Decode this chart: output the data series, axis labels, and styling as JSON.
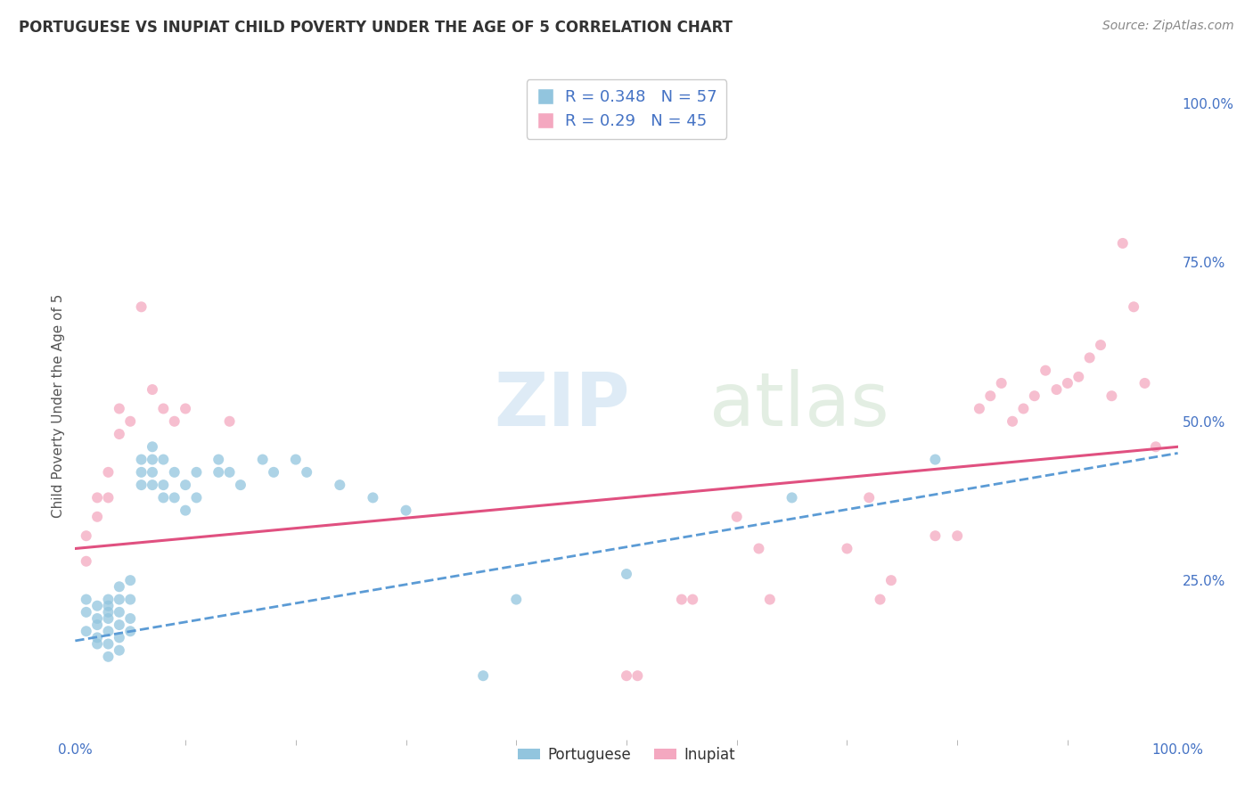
{
  "title": "PORTUGUESE VS INUPIAT CHILD POVERTY UNDER THE AGE OF 5 CORRELATION CHART",
  "source": "Source: ZipAtlas.com",
  "ylabel": "Child Poverty Under the Age of 5",
  "legend_labels": [
    "Portuguese",
    "Inupiat"
  ],
  "R_portuguese": 0.348,
  "N_portuguese": 57,
  "R_inupiat": 0.29,
  "N_inupiat": 45,
  "color_portuguese": "#92c5de",
  "color_inupiat": "#f4a8c0",
  "color_line_portuguese": "#5b9bd5",
  "color_line_inupiat": "#e05080",
  "portuguese_scatter": [
    [
      0.01,
      0.17
    ],
    [
      0.01,
      0.2
    ],
    [
      0.01,
      0.22
    ],
    [
      0.02,
      0.19
    ],
    [
      0.02,
      0.15
    ],
    [
      0.02,
      0.21
    ],
    [
      0.02,
      0.18
    ],
    [
      0.02,
      0.16
    ],
    [
      0.03,
      0.2
    ],
    [
      0.03,
      0.22
    ],
    [
      0.03,
      0.19
    ],
    [
      0.03,
      0.17
    ],
    [
      0.03,
      0.15
    ],
    [
      0.03,
      0.21
    ],
    [
      0.03,
      0.13
    ],
    [
      0.04,
      0.22
    ],
    [
      0.04,
      0.2
    ],
    [
      0.04,
      0.18
    ],
    [
      0.04,
      0.16
    ],
    [
      0.04,
      0.14
    ],
    [
      0.04,
      0.24
    ],
    [
      0.05,
      0.25
    ],
    [
      0.05,
      0.22
    ],
    [
      0.05,
      0.19
    ],
    [
      0.05,
      0.17
    ],
    [
      0.06,
      0.44
    ],
    [
      0.06,
      0.42
    ],
    [
      0.06,
      0.4
    ],
    [
      0.07,
      0.44
    ],
    [
      0.07,
      0.46
    ],
    [
      0.07,
      0.42
    ],
    [
      0.07,
      0.4
    ],
    [
      0.08,
      0.44
    ],
    [
      0.08,
      0.4
    ],
    [
      0.08,
      0.38
    ],
    [
      0.09,
      0.42
    ],
    [
      0.09,
      0.38
    ],
    [
      0.1,
      0.4
    ],
    [
      0.1,
      0.36
    ],
    [
      0.11,
      0.42
    ],
    [
      0.11,
      0.38
    ],
    [
      0.13,
      0.44
    ],
    [
      0.13,
      0.42
    ],
    [
      0.14,
      0.42
    ],
    [
      0.15,
      0.4
    ],
    [
      0.17,
      0.44
    ],
    [
      0.18,
      0.42
    ],
    [
      0.2,
      0.44
    ],
    [
      0.21,
      0.42
    ],
    [
      0.24,
      0.4
    ],
    [
      0.27,
      0.38
    ],
    [
      0.3,
      0.36
    ],
    [
      0.37,
      0.1
    ],
    [
      0.4,
      0.22
    ],
    [
      0.5,
      0.26
    ],
    [
      0.65,
      0.38
    ],
    [
      0.78,
      0.44
    ]
  ],
  "inupiat_scatter": [
    [
      0.01,
      0.32
    ],
    [
      0.01,
      0.28
    ],
    [
      0.02,
      0.38
    ],
    [
      0.02,
      0.35
    ],
    [
      0.03,
      0.42
    ],
    [
      0.03,
      0.38
    ],
    [
      0.04,
      0.52
    ],
    [
      0.04,
      0.48
    ],
    [
      0.05,
      0.5
    ],
    [
      0.06,
      0.68
    ],
    [
      0.07,
      0.55
    ],
    [
      0.08,
      0.52
    ],
    [
      0.09,
      0.5
    ],
    [
      0.1,
      0.52
    ],
    [
      0.14,
      0.5
    ],
    [
      0.5,
      0.1
    ],
    [
      0.51,
      0.1
    ],
    [
      0.55,
      0.22
    ],
    [
      0.56,
      0.22
    ],
    [
      0.6,
      0.35
    ],
    [
      0.62,
      0.3
    ],
    [
      0.63,
      0.22
    ],
    [
      0.7,
      0.3
    ],
    [
      0.72,
      0.38
    ],
    [
      0.73,
      0.22
    ],
    [
      0.74,
      0.25
    ],
    [
      0.78,
      0.32
    ],
    [
      0.8,
      0.32
    ],
    [
      0.82,
      0.52
    ],
    [
      0.83,
      0.54
    ],
    [
      0.84,
      0.56
    ],
    [
      0.85,
      0.5
    ],
    [
      0.86,
      0.52
    ],
    [
      0.87,
      0.54
    ],
    [
      0.88,
      0.58
    ],
    [
      0.89,
      0.55
    ],
    [
      0.9,
      0.56
    ],
    [
      0.91,
      0.57
    ],
    [
      0.92,
      0.6
    ],
    [
      0.93,
      0.62
    ],
    [
      0.94,
      0.54
    ],
    [
      0.95,
      0.78
    ],
    [
      0.96,
      0.68
    ],
    [
      0.97,
      0.56
    ],
    [
      0.98,
      0.46
    ]
  ],
  "reg_portuguese": [
    0.0,
    1.0,
    0.155,
    0.45
  ],
  "reg_inupiat_solid": [
    0.0,
    1.0,
    0.3,
    0.46
  ],
  "reg_inupiat_dashed": [
    0.45,
    1.0,
    0.34,
    0.46
  ],
  "xlim": [
    0.0,
    1.0
  ],
  "ylim": [
    0.0,
    1.05
  ],
  "background_color": "#ffffff",
  "plot_bg_color": "#ffffff",
  "grid_color": "#c8c8c8",
  "title_color": "#333333",
  "source_color": "#888888",
  "stat_color": "#4472c4",
  "ytick_right_color": "#4472c4"
}
